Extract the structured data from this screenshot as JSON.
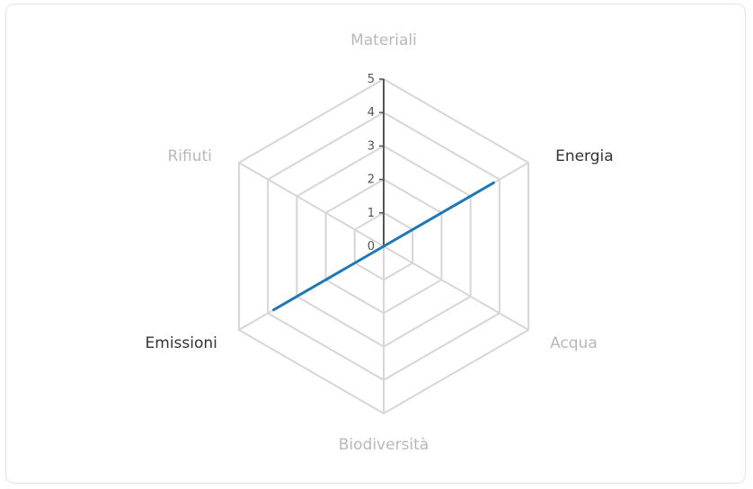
{
  "chart_data": {
    "type": "radar",
    "title": "",
    "categories": [
      "Materiali",
      "Energia",
      "Acqua",
      "Biodiversità",
      "Emissioni",
      "Rifiuti"
    ],
    "category_active": [
      false,
      true,
      false,
      false,
      true,
      false
    ],
    "series": [
      {
        "values": [
          null,
          3.8,
          null,
          null,
          3.8,
          null
        ]
      }
    ],
    "ticks": [
      "0",
      "1",
      "2",
      "3",
      "4",
      "5"
    ],
    "rlim": [
      0,
      5
    ],
    "grid": true,
    "legend": "none"
  },
  "colors": {
    "series": "#1f77b4",
    "grid": "#d6d6d6",
    "axis_line": "#555555",
    "label_active": "#333333",
    "label_inactive": "#b8b8b8"
  }
}
